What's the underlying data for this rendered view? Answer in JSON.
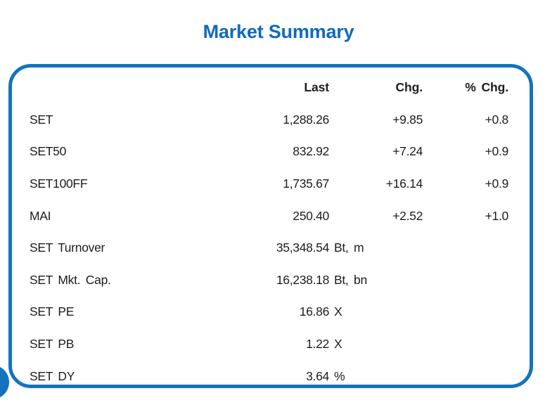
{
  "title": "Market Summary",
  "colors": {
    "accent_blue": "#1473bd",
    "title_blue": "#0f6abe",
    "text": "#1d1d1b"
  },
  "table": {
    "headers": {
      "last": "Last",
      "chg": "Chg.",
      "pct_chg": "% Chg."
    },
    "rows": [
      {
        "label": "SET",
        "last": "1,288.26",
        "unit": "",
        "chg": "+9.85",
        "pct_chg": "+0.8"
      },
      {
        "label": "SET50",
        "last": "832.92",
        "unit": "",
        "chg": "+7.24",
        "pct_chg": "+0.9"
      },
      {
        "label": "SET100FF",
        "last": "1,735.67",
        "unit": "",
        "chg": "+16.14",
        "pct_chg": "+0.9"
      },
      {
        "label": "MAI",
        "last": "250.40",
        "unit": "",
        "chg": "+2.52",
        "pct_chg": "+1.0"
      },
      {
        "label": "SET Turnover",
        "last": "35,348.54",
        "unit": "Bt, m",
        "chg": "",
        "pct_chg": ""
      },
      {
        "label": "SET Mkt. Cap.",
        "last": "16,238.18",
        "unit": "Bt, bn",
        "chg": "",
        "pct_chg": ""
      },
      {
        "label": "SET PE",
        "last": "16.86",
        "unit": "X",
        "chg": "",
        "pct_chg": ""
      },
      {
        "label": "SET PB",
        "last": "1.22",
        "unit": "X",
        "chg": "",
        "pct_chg": ""
      },
      {
        "label": "SET DY",
        "last": "3.64",
        "unit": "%",
        "chg": "",
        "pct_chg": ""
      }
    ]
  }
}
